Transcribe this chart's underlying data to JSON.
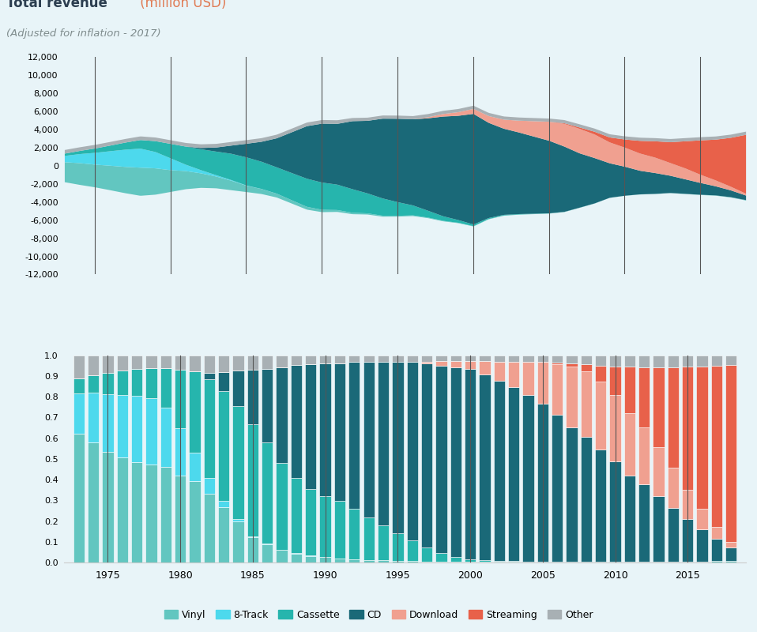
{
  "title_main": "Total revenue",
  "title_main_color": "#2c3e50",
  "title_units": " (million USD)",
  "title_units_color": "#e07b54",
  "title_sub": "(Adjusted for inflation - 2017)",
  "title_sub_color": "#7f8c8d",
  "background_color": "#e8f4f8",
  "years": [
    1973,
    1974,
    1975,
    1976,
    1977,
    1978,
    1979,
    1980,
    1981,
    1982,
    1983,
    1984,
    1985,
    1986,
    1987,
    1988,
    1989,
    1990,
    1991,
    1992,
    1993,
    1994,
    1995,
    1996,
    1997,
    1998,
    1999,
    2000,
    2001,
    2002,
    2003,
    2004,
    2005,
    2006,
    2007,
    2008,
    2009,
    2010,
    2011,
    2012,
    2013,
    2014,
    2015,
    2016,
    2017,
    2018
  ],
  "categories": [
    "Vinyl",
    "8-Track",
    "Cassette",
    "CD",
    "Download",
    "Streaming",
    "Other"
  ],
  "colors": [
    "#62c6c0",
    "#4dd9ed",
    "#26b5ad",
    "#1a6978",
    "#f0a090",
    "#e8614a",
    "#a8b0b4"
  ],
  "revenue": {
    "Vinyl": [
      2200,
      2400,
      2500,
      2700,
      2900,
      3100,
      2900,
      2400,
      2000,
      1600,
      1300,
      1050,
      700,
      550,
      420,
      360,
      310,
      260,
      210,
      160,
      130,
      110,
      90,
      75,
      65,
      55,
      45,
      38,
      32,
      27,
      22,
      20,
      17,
      16,
      15,
      14,
      12,
      12,
      14,
      16,
      20,
      24,
      28,
      35,
      40,
      50
    ],
    "8-Track": [
      700,
      1000,
      1300,
      1600,
      1900,
      2100,
      1800,
      1300,
      700,
      350,
      150,
      70,
      25,
      12,
      6,
      3,
      2,
      1,
      0,
      0,
      0,
      0,
      0,
      0,
      0,
      0,
      0,
      0,
      0,
      0,
      0,
      0,
      0,
      0,
      0,
      0,
      0,
      0,
      0,
      0,
      0,
      0,
      0,
      0,
      0,
      0
    ],
    "Cassette": [
      250,
      350,
      480,
      620,
      780,
      950,
      1200,
      1600,
      2000,
      2300,
      2600,
      2900,
      3100,
      3000,
      2900,
      3000,
      3100,
      3000,
      2800,
      2600,
      2200,
      1900,
      1500,
      1100,
      750,
      500,
      300,
      180,
      110,
      70,
      45,
      28,
      18,
      12,
      8,
      5,
      3,
      2,
      1,
      1,
      1,
      0,
      0,
      0,
      0,
      0
    ],
    "CD": [
      0,
      0,
      0,
      0,
      0,
      0,
      0,
      0,
      0,
      150,
      450,
      900,
      1500,
      2200,
      3200,
      4500,
      5800,
      6500,
      6700,
      7500,
      8000,
      8800,
      9200,
      9500,
      10200,
      11000,
      11500,
      12200,
      10500,
      9500,
      9000,
      8500,
      8000,
      7200,
      6000,
      5000,
      3800,
      3200,
      2600,
      2300,
      1900,
      1600,
      1300,
      1000,
      750,
      500
    ],
    "Download": [
      0,
      0,
      0,
      0,
      0,
      0,
      0,
      0,
      0,
      0,
      0,
      0,
      0,
      0,
      0,
      0,
      0,
      0,
      0,
      0,
      0,
      0,
      0,
      0,
      120,
      280,
      400,
      550,
      750,
      1000,
      1300,
      1700,
      2100,
      2500,
      2700,
      2600,
      2300,
      2100,
      1900,
      1700,
      1400,
      1200,
      900,
      650,
      400,
      200
    ],
    "Streaming": [
      0,
      0,
      0,
      0,
      0,
      0,
      0,
      0,
      0,
      0,
      0,
      0,
      0,
      0,
      0,
      0,
      0,
      0,
      0,
      0,
      0,
      0,
      0,
      0,
      0,
      0,
      0,
      0,
      0,
      0,
      0,
      0,
      0,
      70,
      150,
      300,
      550,
      900,
      1400,
      1800,
      2300,
      3000,
      3800,
      4500,
      5400,
      6500
    ],
    "Other": [
      400,
      400,
      400,
      400,
      400,
      400,
      400,
      400,
      400,
      400,
      400,
      400,
      400,
      400,
      400,
      400,
      400,
      400,
      400,
      350,
      350,
      350,
      350,
      350,
      350,
      350,
      350,
      350,
      350,
      350,
      350,
      350,
      350,
      350,
      350,
      350,
      350,
      350,
      350,
      350,
      350,
      350,
      350,
      350,
      350,
      350
    ]
  },
  "ylim_stream": [
    -12000,
    12000
  ],
  "yticks_stream": [
    -12000,
    -10000,
    -8000,
    -6000,
    -4000,
    -2000,
    0,
    2000,
    4000,
    6000,
    8000,
    10000,
    12000
  ],
  "vlines_years": [
    1975,
    1980,
    1985,
    1990,
    1995,
    2000,
    2005,
    2010,
    2015
  ],
  "vlines_color": "#555555"
}
